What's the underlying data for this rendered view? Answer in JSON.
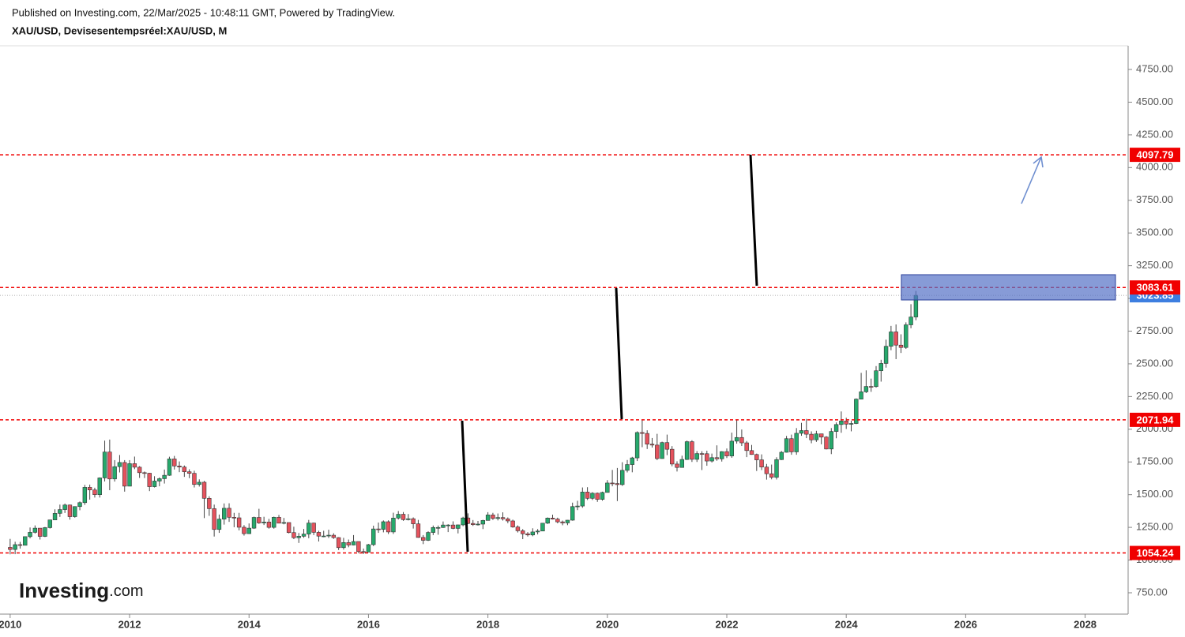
{
  "header": {
    "published": "Published on Investing.com, 22/Mar/2025 - 10:48:11 GMT, Powered by TradingView.",
    "symbol": "XAU/USD, Devisesentempsréel:XAU/USD, M"
  },
  "logo": {
    "brand": "Investing",
    "suffix": ".com"
  },
  "chart_data": {
    "type": "candlestick",
    "up_color": "#26a96c",
    "down_color": "#e5525d",
    "x": [
      "2010-01",
      "2010-02",
      "2010-03",
      "2010-04",
      "2010-05",
      "2010-06",
      "2010-07",
      "2010-08",
      "2010-09",
      "2010-10",
      "2010-11",
      "2010-12",
      "2011-01",
      "2011-02",
      "2011-03",
      "2011-04",
      "2011-05",
      "2011-06",
      "2011-07",
      "2011-08",
      "2011-09",
      "2011-10",
      "2011-11",
      "2011-12",
      "2012-01",
      "2012-02",
      "2012-03",
      "2012-04",
      "2012-05",
      "2012-06",
      "2012-07",
      "2012-08",
      "2012-09",
      "2012-10",
      "2012-11",
      "2012-12",
      "2013-01",
      "2013-02",
      "2013-03",
      "2013-04",
      "2013-05",
      "2013-06",
      "2013-07",
      "2013-08",
      "2013-09",
      "2013-10",
      "2013-11",
      "2013-12",
      "2014-01",
      "2014-02",
      "2014-03",
      "2014-04",
      "2014-05",
      "2014-06",
      "2014-07",
      "2014-08",
      "2014-09",
      "2014-10",
      "2014-11",
      "2014-12",
      "2015-01",
      "2015-02",
      "2015-03",
      "2015-04",
      "2015-05",
      "2015-06",
      "2015-07",
      "2015-08",
      "2015-09",
      "2015-10",
      "2015-11",
      "2015-12",
      "2016-01",
      "2016-02",
      "2016-03",
      "2016-04",
      "2016-05",
      "2016-06",
      "2016-07",
      "2016-08",
      "2016-09",
      "2016-10",
      "2016-11",
      "2016-12",
      "2017-01",
      "2017-02",
      "2017-03",
      "2017-04",
      "2017-05",
      "2017-06",
      "2017-07",
      "2017-08",
      "2017-09",
      "2017-10",
      "2017-11",
      "2017-12",
      "2018-01",
      "2018-02",
      "2018-03",
      "2018-04",
      "2018-05",
      "2018-06",
      "2018-07",
      "2018-08",
      "2018-09",
      "2018-10",
      "2018-11",
      "2018-12",
      "2019-01",
      "2019-02",
      "2019-03",
      "2019-04",
      "2019-05",
      "2019-06",
      "2019-07",
      "2019-08",
      "2019-09",
      "2019-10",
      "2019-11",
      "2019-12",
      "2020-01",
      "2020-02",
      "2020-03",
      "2020-04",
      "2020-05",
      "2020-06",
      "2020-07",
      "2020-08",
      "2020-09",
      "2020-10",
      "2020-11",
      "2020-12",
      "2021-01",
      "2021-02",
      "2021-03",
      "2021-04",
      "2021-05",
      "2021-06",
      "2021-07",
      "2021-08",
      "2021-09",
      "2021-10",
      "2021-11",
      "2021-12",
      "2022-01",
      "2022-02",
      "2022-03",
      "2022-04",
      "2022-05",
      "2022-06",
      "2022-07",
      "2022-08",
      "2022-09",
      "2022-10",
      "2022-11",
      "2022-12",
      "2023-01",
      "2023-02",
      "2023-03",
      "2023-04",
      "2023-05",
      "2023-06",
      "2023-07",
      "2023-08",
      "2023-09",
      "2023-10",
      "2023-11",
      "2023-12",
      "2024-01",
      "2024-02",
      "2024-03",
      "2024-04",
      "2024-05",
      "2024-06",
      "2024-07",
      "2024-08",
      "2024-09",
      "2024-10",
      "2024-11",
      "2024-12",
      "2025-01",
      "2025-02",
      "2025-03"
    ],
    "open": [
      1097,
      1081,
      1118,
      1113,
      1179,
      1212,
      1244,
      1181,
      1248,
      1307,
      1357,
      1386,
      1421,
      1332,
      1409,
      1439,
      1556,
      1536,
      1500,
      1628,
      1826,
      1620,
      1714,
      1746,
      1565,
      1737,
      1710,
      1668,
      1664,
      1561,
      1604,
      1622,
      1648,
      1773,
      1719,
      1711,
      1675,
      1663,
      1578,
      1595,
      1472,
      1393,
      1234,
      1313,
      1396,
      1327,
      1323,
      1251,
      1202,
      1244,
      1326,
      1284,
      1291,
      1250,
      1327,
      1282,
      1287,
      1210,
      1171,
      1182,
      1199,
      1283,
      1212,
      1183,
      1184,
      1190,
      1172,
      1095,
      1134,
      1115,
      1142,
      1065,
      1061,
      1118,
      1238,
      1235,
      1293,
      1215,
      1321,
      1350,
      1309,
      1316,
      1277,
      1173,
      1151,
      1211,
      1249,
      1249,
      1268,
      1268,
      1242,
      1269,
      1322,
      1280,
      1271,
      1275,
      1303,
      1345,
      1318,
      1325,
      1315,
      1299,
      1253,
      1224,
      1201,
      1192,
      1215,
      1222,
      1282,
      1321,
      1313,
      1292,
      1284,
      1305,
      1409,
      1413,
      1520,
      1472,
      1511,
      1464,
      1517,
      1589,
      1585,
      1577,
      1686,
      1730,
      1781,
      1975,
      1968,
      1886,
      1879,
      1776,
      1898,
      1847,
      1734,
      1708,
      1769,
      1905,
      1770,
      1814,
      1813,
      1757,
      1783,
      1774,
      1829,
      1796,
      1909,
      1937,
      1896,
      1837,
      1807,
      1766,
      1711,
      1660,
      1633,
      1768,
      1824,
      1928,
      1827,
      1969,
      1990,
      1962,
      1919,
      1965,
      1940,
      1849,
      1983,
      2036,
      2063,
      2039,
      2044,
      2230,
      2286,
      2327,
      2326,
      2447,
      2503,
      2634,
      2744,
      2643,
      2625,
      2798,
      2858
    ],
    "high": [
      1162,
      1140,
      1139,
      1181,
      1249,
      1265,
      1213,
      1253,
      1308,
      1388,
      1424,
      1432,
      1424,
      1411,
      1448,
      1575,
      1577,
      1553,
      1632,
      1913,
      1921,
      1764,
      1803,
      1764,
      1764,
      1791,
      1718,
      1677,
      1667,
      1641,
      1632,
      1692,
      1790,
      1796,
      1754,
      1723,
      1694,
      1683,
      1617,
      1605,
      1488,
      1424,
      1348,
      1433,
      1434,
      1361,
      1361,
      1267,
      1280,
      1332,
      1392,
      1331,
      1315,
      1332,
      1345,
      1322,
      1287,
      1255,
      1207,
      1238,
      1307,
      1286,
      1224,
      1224,
      1232,
      1205,
      1175,
      1170,
      1157,
      1191,
      1142,
      1088,
      1123,
      1263,
      1287,
      1303,
      1304,
      1362,
      1375,
      1367,
      1352,
      1326,
      1307,
      1191,
      1220,
      1264,
      1264,
      1295,
      1274,
      1296,
      1271,
      1331,
      1357,
      1306,
      1299,
      1308,
      1366,
      1361,
      1356,
      1365,
      1326,
      1309,
      1265,
      1237,
      1214,
      1243,
      1237,
      1284,
      1326,
      1347,
      1324,
      1302,
      1306,
      1439,
      1453,
      1555,
      1557,
      1519,
      1516,
      1523,
      1611,
      1689,
      1704,
      1748,
      1765,
      1789,
      1984,
      2075,
      1992,
      1933,
      1965,
      1905,
      1959,
      1871,
      1755,
      1798,
      1913,
      1916,
      1833,
      1832,
      1836,
      1814,
      1877,
      1832,
      1853,
      1974,
      2070,
      1998,
      1910,
      1880,
      1814,
      1808,
      1735,
      1730,
      1786,
      1833,
      1949,
      1959,
      2009,
      2049,
      2079,
      1984,
      1988,
      1949,
      1947,
      2009,
      2052,
      2136,
      2088,
      2065,
      2236,
      2431,
      2450,
      2387,
      2483,
      2531,
      2685,
      2790,
      2801,
      2726,
      2817,
      2956,
      3057
    ],
    "low": [
      1044,
      1045,
      1088,
      1113,
      1166,
      1203,
      1157,
      1176,
      1241,
      1315,
      1330,
      1360,
      1309,
      1324,
      1381,
      1422,
      1462,
      1478,
      1478,
      1601,
      1534,
      1600,
      1670,
      1523,
      1564,
      1695,
      1628,
      1627,
      1527,
      1555,
      1564,
      1585,
      1644,
      1692,
      1672,
      1636,
      1626,
      1555,
      1562,
      1321,
      1338,
      1180,
      1208,
      1271,
      1292,
      1251,
      1227,
      1187,
      1200,
      1238,
      1277,
      1268,
      1240,
      1240,
      1281,
      1273,
      1204,
      1160,
      1131,
      1170,
      1167,
      1191,
      1142,
      1175,
      1169,
      1162,
      1077,
      1080,
      1098,
      1113,
      1053,
      1046,
      1062,
      1107,
      1208,
      1212,
      1199,
      1200,
      1310,
      1300,
      1303,
      1241,
      1171,
      1122,
      1146,
      1191,
      1194,
      1246,
      1214,
      1236,
      1204,
      1259,
      1275,
      1261,
      1264,
      1237,
      1302,
      1307,
      1303,
      1302,
      1282,
      1247,
      1211,
      1160,
      1180,
      1182,
      1196,
      1221,
      1276,
      1310,
      1281,
      1266,
      1267,
      1301,
      1382,
      1400,
      1459,
      1459,
      1445,
      1454,
      1517,
      1564,
      1451,
      1567,
      1670,
      1671,
      1757,
      1863,
      1849,
      1860,
      1764,
      1775,
      1802,
      1717,
      1677,
      1706,
      1765,
      1750,
      1750,
      1688,
      1721,
      1746,
      1759,
      1753,
      1780,
      1782,
      1890,
      1872,
      1787,
      1805,
      1681,
      1688,
      1615,
      1617,
      1616,
      1765,
      1822,
      1805,
      1805,
      1950,
      1932,
      1893,
      1903,
      1885,
      1846,
      1810,
      1931,
      1973,
      2002,
      1984,
      2039,
      2229,
      2277,
      2286,
      2318,
      2364,
      2471,
      2604,
      2536,
      2583,
      2614,
      2772,
      2833
    ],
    "close": [
      1081,
      1118,
      1113,
      1179,
      1212,
      1244,
      1181,
      1248,
      1307,
      1357,
      1386,
      1421,
      1332,
      1409,
      1439,
      1556,
      1536,
      1500,
      1628,
      1826,
      1620,
      1714,
      1746,
      1565,
      1737,
      1710,
      1668,
      1664,
      1561,
      1604,
      1622,
      1648,
      1773,
      1719,
      1711,
      1675,
      1663,
      1578,
      1595,
      1472,
      1393,
      1234,
      1313,
      1396,
      1327,
      1323,
      1251,
      1202,
      1244,
      1326,
      1284,
      1291,
      1250,
      1327,
      1282,
      1287,
      1210,
      1171,
      1182,
      1199,
      1283,
      1212,
      1183,
      1184,
      1190,
      1172,
      1095,
      1134,
      1115,
      1142,
      1065,
      1061,
      1118,
      1238,
      1235,
      1293,
      1215,
      1321,
      1350,
      1309,
      1316,
      1277,
      1173,
      1151,
      1211,
      1249,
      1249,
      1268,
      1268,
      1242,
      1269,
      1322,
      1280,
      1271,
      1275,
      1303,
      1345,
      1318,
      1325,
      1315,
      1299,
      1253,
      1224,
      1201,
      1192,
      1215,
      1222,
      1282,
      1321,
      1313,
      1292,
      1284,
      1305,
      1409,
      1413,
      1520,
      1472,
      1511,
      1464,
      1517,
      1589,
      1585,
      1577,
      1686,
      1730,
      1781,
      1975,
      1968,
      1886,
      1879,
      1776,
      1898,
      1847,
      1734,
      1708,
      1769,
      1905,
      1770,
      1814,
      1813,
      1757,
      1783,
      1774,
      1829,
      1796,
      1909,
      1937,
      1896,
      1837,
      1807,
      1766,
      1711,
      1660,
      1633,
      1768,
      1824,
      1928,
      1827,
      1969,
      1990,
      1962,
      1919,
      1965,
      1940,
      1849,
      1983,
      2036,
      2063,
      2039,
      2044,
      2230,
      2286,
      2327,
      2326,
      2447,
      2503,
      2634,
      2744,
      2643,
      2625,
      2798,
      2858,
      3023.85
    ],
    "xlim": [
      2009.83,
      2028.72
    ],
    "xticks": [
      2010,
      2012,
      2014,
      2016,
      2018,
      2020,
      2022,
      2024,
      2026,
      2028
    ],
    "ylim": [
      587,
      4931
    ],
    "yticks": [
      {
        "value": 750,
        "label": "750.00"
      },
      {
        "value": 1000,
        "label": "1000.00"
      },
      {
        "value": 1250,
        "label": "1250.00"
      },
      {
        "value": 1500,
        "label": "1500.00"
      },
      {
        "value": 1750,
        "label": "1750.00"
      },
      {
        "value": 2000,
        "label": "2000.00"
      },
      {
        "value": 2250,
        "label": "2250.00"
      },
      {
        "value": 2500,
        "label": "2500.00"
      },
      {
        "value": 2750,
        "label": "2750.00"
      },
      {
        "value": 3000,
        "label": "3000.00"
      },
      {
        "value": 3250,
        "label": "3250.00"
      },
      {
        "value": 3500,
        "label": "3500.00"
      },
      {
        "value": 3750,
        "label": "3750.00"
      },
      {
        "value": 4000,
        "label": "4000.00"
      },
      {
        "value": 4250,
        "label": "4250.00"
      },
      {
        "value": 4500,
        "label": "4500.00"
      },
      {
        "value": 4750,
        "label": "4750.00"
      }
    ],
    "levels": [
      4097.79,
      3083.61,
      2071.94,
      1054.24
    ],
    "level_color": "#f00000",
    "last_price_color": "#3d7ee0"
  }
}
